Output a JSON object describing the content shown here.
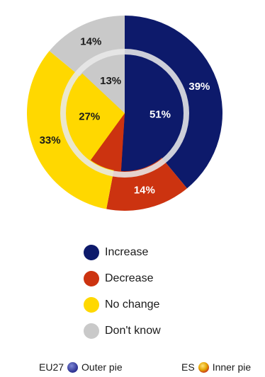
{
  "chart_data": {
    "type": "pie",
    "kind": "donut-with-inner-pie",
    "categories": [
      "Increase",
      "Decrease",
      "No change",
      "Don't know"
    ],
    "colors": {
      "Increase": "#0d1a6b",
      "Decrease": "#cc3310",
      "No change": "#ffd800",
      "Don't know": "#c9c9c9"
    },
    "series": [
      {
        "name": "EU27",
        "ring": "outer",
        "values": [
          39,
          14,
          33,
          14
        ],
        "labels": [
          "39%",
          "14%",
          "33%",
          "14%"
        ]
      },
      {
        "name": "ES",
        "ring": "inner",
        "values": [
          51,
          9,
          27,
          13
        ],
        "labels": [
          "51%",
          "",
          "27%",
          "13%"
        ]
      }
    ],
    "legend": {
      "items": [
        "Increase",
        "Decrease",
        "No change",
        "Don't know"
      ],
      "placement": "below"
    },
    "pie_key": {
      "outer_text": "EU27",
      "outer_label": "Outer pie",
      "inner_text": "ES",
      "inner_label": "Inner pie"
    }
  }
}
